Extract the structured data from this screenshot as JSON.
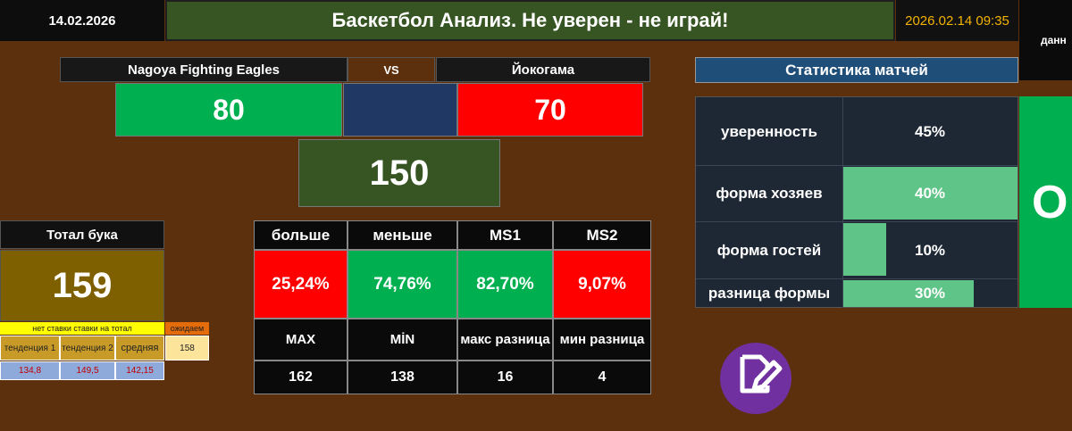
{
  "header": {
    "date": "14.02.2026",
    "title": "Баскетбол Анализ. Не уверен - не играй!",
    "datetime": "2026.02.14 09:35",
    "right_cut": "данн"
  },
  "match": {
    "home_team": "Nagoya Fighting Eagles",
    "vs": "VS",
    "away_team": "Йокогама",
    "home_score": "80",
    "away_score": "70",
    "total": "150"
  },
  "bookmaker": {
    "label": "Тотал бука",
    "value": "159",
    "no_bet": "нет ставки ставки на тотал",
    "expect_label": "ожидаем",
    "trend1": "тенденция 1",
    "trend2": "тенденция 2",
    "avg_label": "средняя",
    "expect_value": "158",
    "trend1_val": "134,8",
    "trend2_val": "149,5",
    "avg_val": "142,15"
  },
  "grid": {
    "headers": [
      "больше",
      "меньше",
      "MS1",
      "MS2"
    ],
    "percents": [
      "25,24%",
      "74,76%",
      "82,70%",
      "9,07%"
    ],
    "labels": [
      "MAX",
      "MİN",
      "макс разница",
      "мин разница"
    ],
    "values": [
      "162",
      "138",
      "16",
      "4"
    ]
  },
  "stats": {
    "title": "Статистика матчей",
    "rows": [
      {
        "label": "уверенность",
        "value": "45%",
        "bar": 0
      },
      {
        "label": "форма хозяев",
        "value": "40%",
        "bar": 1.0
      },
      {
        "label": "форма гостей",
        "value": "10%",
        "bar": 0.25
      },
      {
        "label": "разница формы",
        "value": "30%",
        "bar": 0.75
      }
    ],
    "side_letter": "О"
  },
  "icons": {
    "edit": "edit-note-icon"
  },
  "colors": {
    "background": "#5c2f0d",
    "green": "#00b050",
    "red": "#ff0000",
    "navy": "#1f3864",
    "olive": "#7f6000",
    "edit_purple": "#7030a0"
  }
}
